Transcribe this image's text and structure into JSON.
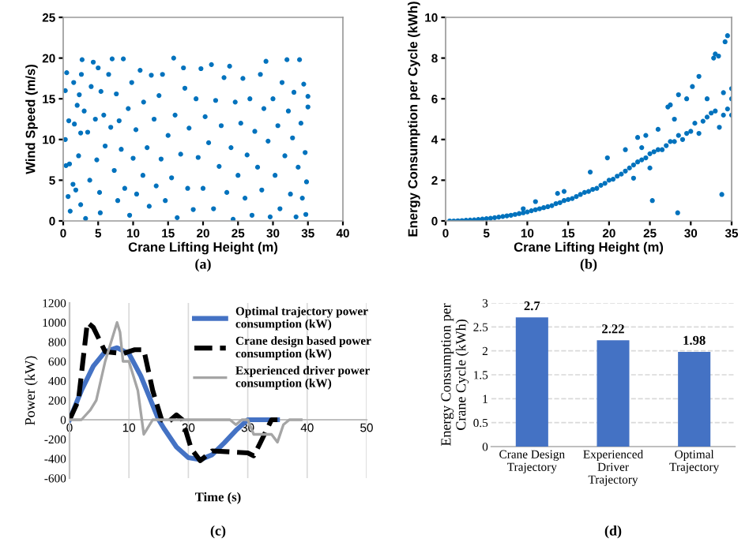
{
  "chart_data": [
    {
      "type": "scatter",
      "xlabel": "Crane Lifting Height (m)",
      "ylabel": "Wind Speed (m/s)",
      "xlim": [
        0,
        40
      ],
      "ylim": [
        0,
        25
      ],
      "xticks": [
        0,
        5,
        10,
        15,
        20,
        25,
        30,
        35,
        40
      ],
      "yticks": [
        0,
        5,
        10,
        15,
        20,
        25
      ],
      "grid": false,
      "legend": false,
      "marker": "circle",
      "annotations": [
        "(a)"
      ],
      "series": [
        {
          "color": "#0072bd",
          "x": [
            0.3,
            0.5,
            0.8,
            0.4,
            0.9,
            0.3,
            0.7,
            1,
            1.5,
            1.6,
            1.8,
            1.4,
            2,
            2.3,
            2.5,
            2.7,
            2.6,
            2.2,
            2.5,
            3,
            3.2,
            3.5,
            3.8,
            4,
            4.3,
            4.6,
            4.8,
            5,
            5.2,
            5.4,
            5.3,
            5.8,
            6,
            6.5,
            6.8,
            7,
            7.3,
            7.6,
            7.8,
            8,
            8.3,
            8.6,
            8.8,
            9.3,
            9.5,
            9.8,
            10,
            10.4,
            10.5,
            11,
            11.4,
            11.5,
            12,
            12.3,
            12.6,
            13,
            13.3,
            13.7,
            14,
            14.2,
            14.6,
            15,
            15.5,
            15.8,
            16,
            16.3,
            16.8,
            17.2,
            17.4,
            17.8,
            18,
            18.6,
            19,
            19.3,
            19.7,
            20,
            20.3,
            20.8,
            21.2,
            21.5,
            21.8,
            22.3,
            22.6,
            23,
            23.4,
            23.8,
            24,
            24.3,
            24.6,
            25,
            25.4,
            25.7,
            26,
            26.3,
            26.7,
            27,
            27.4,
            27.8,
            28.2,
            28.4,
            28.7,
            29,
            29.3,
            29.6,
            30,
            30.3,
            30.7,
            31,
            31.3,
            31.7,
            32,
            32.2,
            32.5,
            32.8,
            33,
            33.3,
            33.6,
            33.8,
            34,
            34.2,
            34.4,
            34.6,
            34.8,
            35,
            35,
            34.7
          ],
          "values": [
            16,
            18.2,
            12.3,
            6.8,
            7,
            10,
            3,
            1.2,
            17,
            11.9,
            3.8,
            4.5,
            14.2,
            15.5,
            10.8,
            19.8,
            18,
            8,
            2,
            13.5,
            0.3,
            10.9,
            5,
            16.5,
            19.5,
            12.5,
            7.5,
            18.8,
            3.5,
            15.9,
            1,
            13,
            9.2,
            18,
            11.5,
            19.9,
            6.2,
            15.6,
            2.5,
            12.3,
            8.8,
            19.9,
            4,
            13.8,
            0.7,
            17,
            7.7,
            11.2,
            3.3,
            18.5,
            5.6,
            14.6,
            9,
            1.8,
            17.9,
            12.5,
            4.3,
            15.4,
            7.6,
            18,
            2.5,
            10.5,
            5.3,
            20,
            13,
            0.4,
            8.2,
            18.8,
            16.3,
            4,
            11.4,
            1.4,
            15,
            7.8,
            18.7,
            4,
            12.8,
            9.6,
            19.2,
            1.5,
            14.8,
            6.7,
            11.7,
            17.6,
            3.5,
            19,
            9,
            0.2,
            14.6,
            5.6,
            12,
            17.5,
            2.8,
            8.1,
            15,
            0.7,
            11,
            6.6,
            18,
            3.8,
            13.8,
            19.6,
            9.8,
            0.5,
            15,
            5.6,
            11.7,
            1.5,
            17,
            8,
            19.8,
            13.5,
            3.3,
            10.2,
            15.8,
            0.5,
            6.6,
            19.8,
            12,
            2.8,
            16.8,
            8.4,
            4.8,
            14,
            15.3,
            0.8
          ]
        }
      ]
    },
    {
      "type": "scatter",
      "xlabel": "Crane Lifting Height (m)",
      "ylabel": "Energy Consumption per Cycle (kWh)",
      "xlim": [
        0,
        35
      ],
      "ylim": [
        0,
        10
      ],
      "xticks": [
        0,
        5,
        10,
        15,
        20,
        25,
        30,
        35
      ],
      "yticks": [
        0,
        2,
        4,
        6,
        8,
        10
      ],
      "grid": false,
      "legend": false,
      "marker": "circle",
      "annotations": [
        "(b)"
      ],
      "series": [
        {
          "color": "#0072bd",
          "x": [
            0.5,
            1,
            1.5,
            2,
            2.5,
            3,
            3.5,
            4,
            4.5,
            5,
            5.5,
            6,
            6.5,
            7,
            7.5,
            8,
            8.5,
            9,
            9.5,
            9.5,
            10,
            10.5,
            11,
            11,
            11.5,
            12,
            12.5,
            13,
            13.5,
            13.7,
            14,
            14.5,
            14.5,
            15,
            15.5,
            16,
            16.5,
            17,
            17.5,
            17.7,
            18,
            18.5,
            19,
            19.5,
            19.8,
            20,
            20.5,
            21,
            21.5,
            22,
            22,
            22.5,
            23,
            23,
            23.5,
            23.5,
            24,
            24,
            24.5,
            24.5,
            25,
            25,
            25.3,
            25.5,
            26,
            26,
            26.5,
            27,
            27.2,
            27.5,
            27.5,
            28,
            28,
            28.4,
            28.5,
            28.5,
            29,
            29.5,
            29.5,
            30,
            30.2,
            30.5,
            31,
            31,
            31.5,
            32,
            32,
            32.5,
            32.8,
            33,
            33,
            33.4,
            33.5,
            33.8,
            34,
            34,
            34.2,
            34.5,
            34.5,
            35,
            35,
            35
          ],
          "values": [
            0,
            0,
            0.01,
            0.02,
            0.03,
            0.04,
            0.05,
            0.07,
            0.09,
            0.11,
            0.13,
            0.16,
            0.19,
            0.22,
            0.25,
            0.28,
            0.32,
            0.36,
            0.4,
            0.6,
            0.44,
            0.5,
            0.55,
            0.95,
            0.6,
            0.65,
            0.7,
            0.75,
            0.85,
            1.35,
            0.9,
            1.45,
            1,
            1.05,
            1.1,
            1.2,
            1.3,
            1.4,
            1.45,
            2.4,
            1.55,
            1.6,
            1.75,
            1.85,
            3.1,
            2,
            2.05,
            2.2,
            2.3,
            2.45,
            3.5,
            2.6,
            2.75,
            2.1,
            4.1,
            2.9,
            3,
            3.6,
            4.2,
            3.1,
            3.3,
            2.6,
            1,
            3.4,
            3.5,
            4.5,
            3.5,
            3.7,
            5.6,
            3.9,
            5.7,
            3.9,
            5,
            0.4,
            6.2,
            4.2,
            4,
            6,
            4.3,
            4.4,
            6.6,
            4.8,
            7.1,
            4.3,
            4.9,
            5.1,
            6,
            5.3,
            8,
            5.4,
            8.2,
            8.1,
            4.6,
            1.3,
            5.2,
            6.3,
            8.8,
            9.1,
            5.5,
            6.5,
            5.2,
            6
          ]
        }
      ]
    },
    {
      "type": "line",
      "xlabel": "Time (s)",
      "ylabel": "Power (kW)",
      "xlim": [
        0,
        50
      ],
      "ylim": [
        -600,
        1200
      ],
      "xticks": [
        0,
        10,
        20,
        30,
        40,
        50
      ],
      "yticks": [
        -600,
        -400,
        -200,
        0,
        200,
        400,
        600,
        800,
        1000,
        1200
      ],
      "grid": "x",
      "legend": "top right",
      "annotations": [
        "(c)"
      ],
      "series": [
        {
          "name": "Optimal trajectory power\nconsumption (kW)",
          "color": "#4472c4",
          "line_style": "solid",
          "x": [
            0,
            2,
            4,
            6,
            8,
            10,
            12,
            14,
            15,
            16,
            18,
            20,
            22,
            24,
            26,
            28,
            30,
            32,
            35
          ],
          "values": [
            0,
            300,
            550,
            700,
            740,
            680,
            450,
            150,
            0,
            -100,
            -280,
            -390,
            -410,
            -360,
            -240,
            -110,
            0,
            0,
            0
          ]
        },
        {
          "name": "Crane design based power\nconsumption (kW)",
          "color": "#000000",
          "line_style": "dashed",
          "x": [
            0,
            1.5,
            3,
            4,
            6,
            9,
            11,
            12.5,
            14,
            15.5,
            16.5,
            18,
            19,
            20.5,
            22,
            24,
            27,
            30,
            31,
            32,
            34,
            35
          ],
          "values": [
            0,
            200,
            1000,
            950,
            700,
            680,
            720,
            720,
            300,
            0,
            -30,
            50,
            0,
            -300,
            -420,
            -320,
            -330,
            -340,
            -370,
            -250,
            0,
            0
          ]
        },
        {
          "name": "Experienced driver power\nconsumption (kW)",
          "color": "#a5a5a5",
          "line_style": "solid",
          "x": [
            0,
            2,
            3.5,
            4.5,
            6,
            8,
            8.5,
            9,
            10,
            11.5,
            12.5,
            13,
            14,
            27,
            28,
            29,
            30,
            31,
            34,
            35,
            36,
            37,
            39
          ],
          "values": [
            0,
            0,
            100,
            200,
            600,
            1000,
            900,
            600,
            600,
            300,
            -150,
            -100,
            0,
            0,
            -50,
            0,
            0,
            -150,
            -150,
            -230,
            -50,
            0,
            0
          ]
        }
      ]
    },
    {
      "type": "bar",
      "categories": [
        "Crane Design\nTrajectory",
        "Experienced\nDriver\nTrajectory",
        "Optimal\nTrajectory"
      ],
      "values": [
        2.7,
        2.22,
        1.98
      ],
      "color": "#4472c4",
      "ylabel": "Energy Consumption per\nCrane Cycle (kWh)",
      "ylim": [
        0,
        3
      ],
      "yticks": [
        0,
        0.5,
        1,
        1.5,
        2,
        2.5,
        3
      ],
      "grid": "y",
      "data_labels": true,
      "annotations": [
        "(d)"
      ]
    }
  ]
}
